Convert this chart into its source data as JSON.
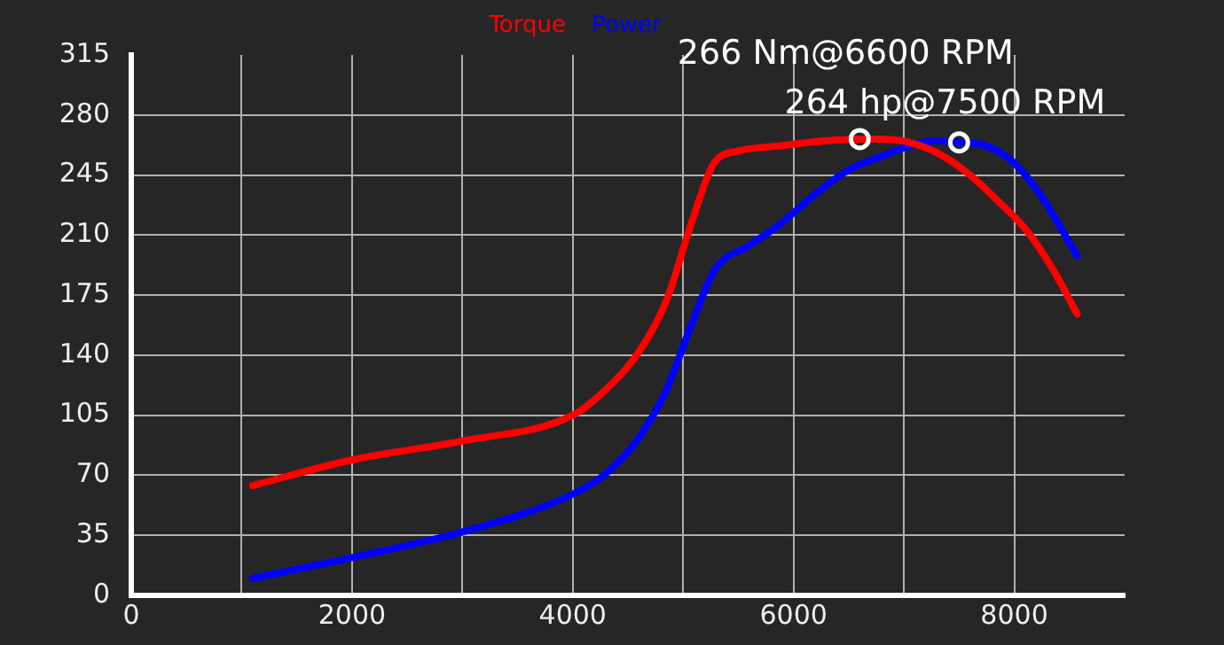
{
  "chart_data": {
    "type": "line",
    "xlim": [
      0,
      9000
    ],
    "xticks": [
      0,
      {
        "value": 1000,
        "label": null
      },
      2000,
      {
        "value": 3000,
        "label": null
      },
      4000,
      {
        "value": 5000,
        "label": null
      },
      6000,
      {
        "value": 7000,
        "label": null
      },
      8000
    ],
    "ylim": [
      0,
      315
    ],
    "yticks": [
      0,
      35,
      70,
      105,
      140,
      175,
      210,
      245,
      280,
      315
    ],
    "grid": true,
    "legend": "top",
    "marker": "none",
    "line_style": "solid",
    "series": [
      {
        "name": "Torque",
        "color": "#ff0000",
        "x": [
          1100,
          2000,
          3000,
          4000,
          4300,
          4600,
          4850,
          5070,
          5280,
          5500,
          5870,
          6300,
          6600,
          6800,
          7050,
          7300,
          7580,
          7850,
          8120,
          8350,
          8570
        ],
        "values": [
          64,
          79,
          90,
          105,
          120,
          142,
          172,
          216,
          252,
          259,
          262,
          265,
          266,
          266,
          264,
          258,
          246,
          230,
          212,
          190,
          164
        ]
      },
      {
        "name": "Power",
        "color": "#0000ff",
        "x": [
          1100,
          2000,
          3000,
          4000,
          4300,
          4600,
          4850,
          5070,
          5290,
          5600,
          5870,
          6200,
          6500,
          6800,
          7050,
          7300,
          7500,
          7750,
          8000,
          8220,
          8570
        ],
        "values": [
          10,
          22,
          37,
          59,
          71,
          92,
          120,
          157,
          190,
          204,
          216,
          234,
          248,
          256,
          262,
          265,
          264,
          262,
          252,
          235,
          198
        ]
      }
    ],
    "annotations": [
      {
        "text": "266 Nm@6600 RPM",
        "x": 6600,
        "y": 266
      },
      {
        "text": "264 hp@7500 RPM",
        "x": 7500,
        "y": 264
      }
    ]
  }
}
